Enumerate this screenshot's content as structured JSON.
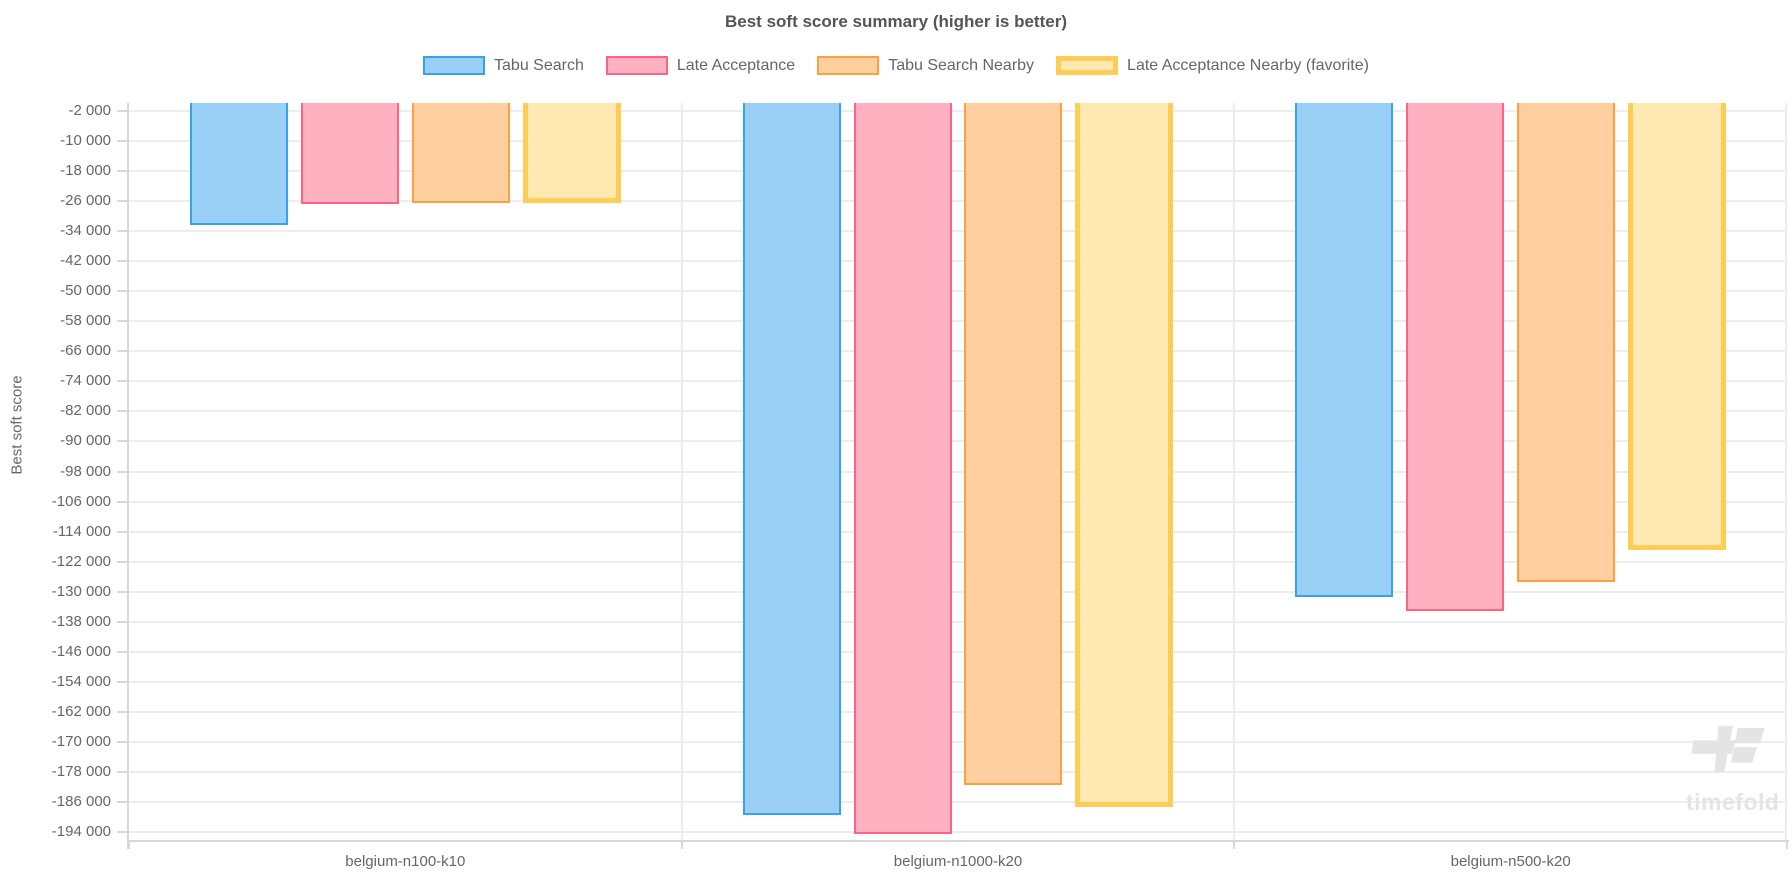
{
  "chart_data": {
    "type": "bar",
    "title": "Best soft score summary (higher is better)",
    "ylabel": "Best soft score",
    "xlabel": "",
    "watermark": "timefold",
    "legend_position": "top",
    "grid": true,
    "categories": [
      "belgium-n100-k10",
      "belgium-n1000-k20",
      "belgium-n500-k20"
    ],
    "series": [
      {
        "name": "Tabu Search",
        "values": [
          -32400,
          -189400,
          -131500
        ],
        "fill": "#9AD0F5",
        "border": "#36A2EB",
        "border_width": 2
      },
      {
        "name": "Late Acceptance",
        "values": [
          -26900,
          -194300,
          -135100
        ],
        "fill": "#FFB1C1",
        "border": "#FF6384",
        "border_width": 2
      },
      {
        "name": "Tabu Search Nearby",
        "values": [
          -26500,
          -181400,
          -127300
        ],
        "fill": "#FFCF9F",
        "border": "#FF9F40",
        "border_width": 2
      },
      {
        "name": "Late Acceptance Nearby (favorite)",
        "values": [
          -26700,
          -187100,
          -118900
        ],
        "fill": "#FFE9B3",
        "border": "#FFCD56",
        "border_width": 5,
        "favorite": true
      }
    ],
    "ylim": [
      -196000,
      0
    ],
    "y_tick_labels": [
      "-2 000",
      "-10 000",
      "-18 000",
      "-26 000",
      "-34 000",
      "-42 000",
      "-50 000",
      "-58 000",
      "-66 000",
      "-74 000",
      "-82 000",
      "-90 000",
      "-98 000",
      "-106 000",
      "-114 000",
      "-122 000",
      "-130 000",
      "-138 000",
      "-146 000",
      "-154 000",
      "-162 000",
      "-170 000",
      "-178 000",
      "-186 000",
      "-194 000"
    ],
    "colors": {
      "text": "#666666",
      "title": "#555555",
      "grid": "#EDEDED",
      "axis": "#D8D8D8",
      "watermark": "#E4E4E4"
    }
  }
}
